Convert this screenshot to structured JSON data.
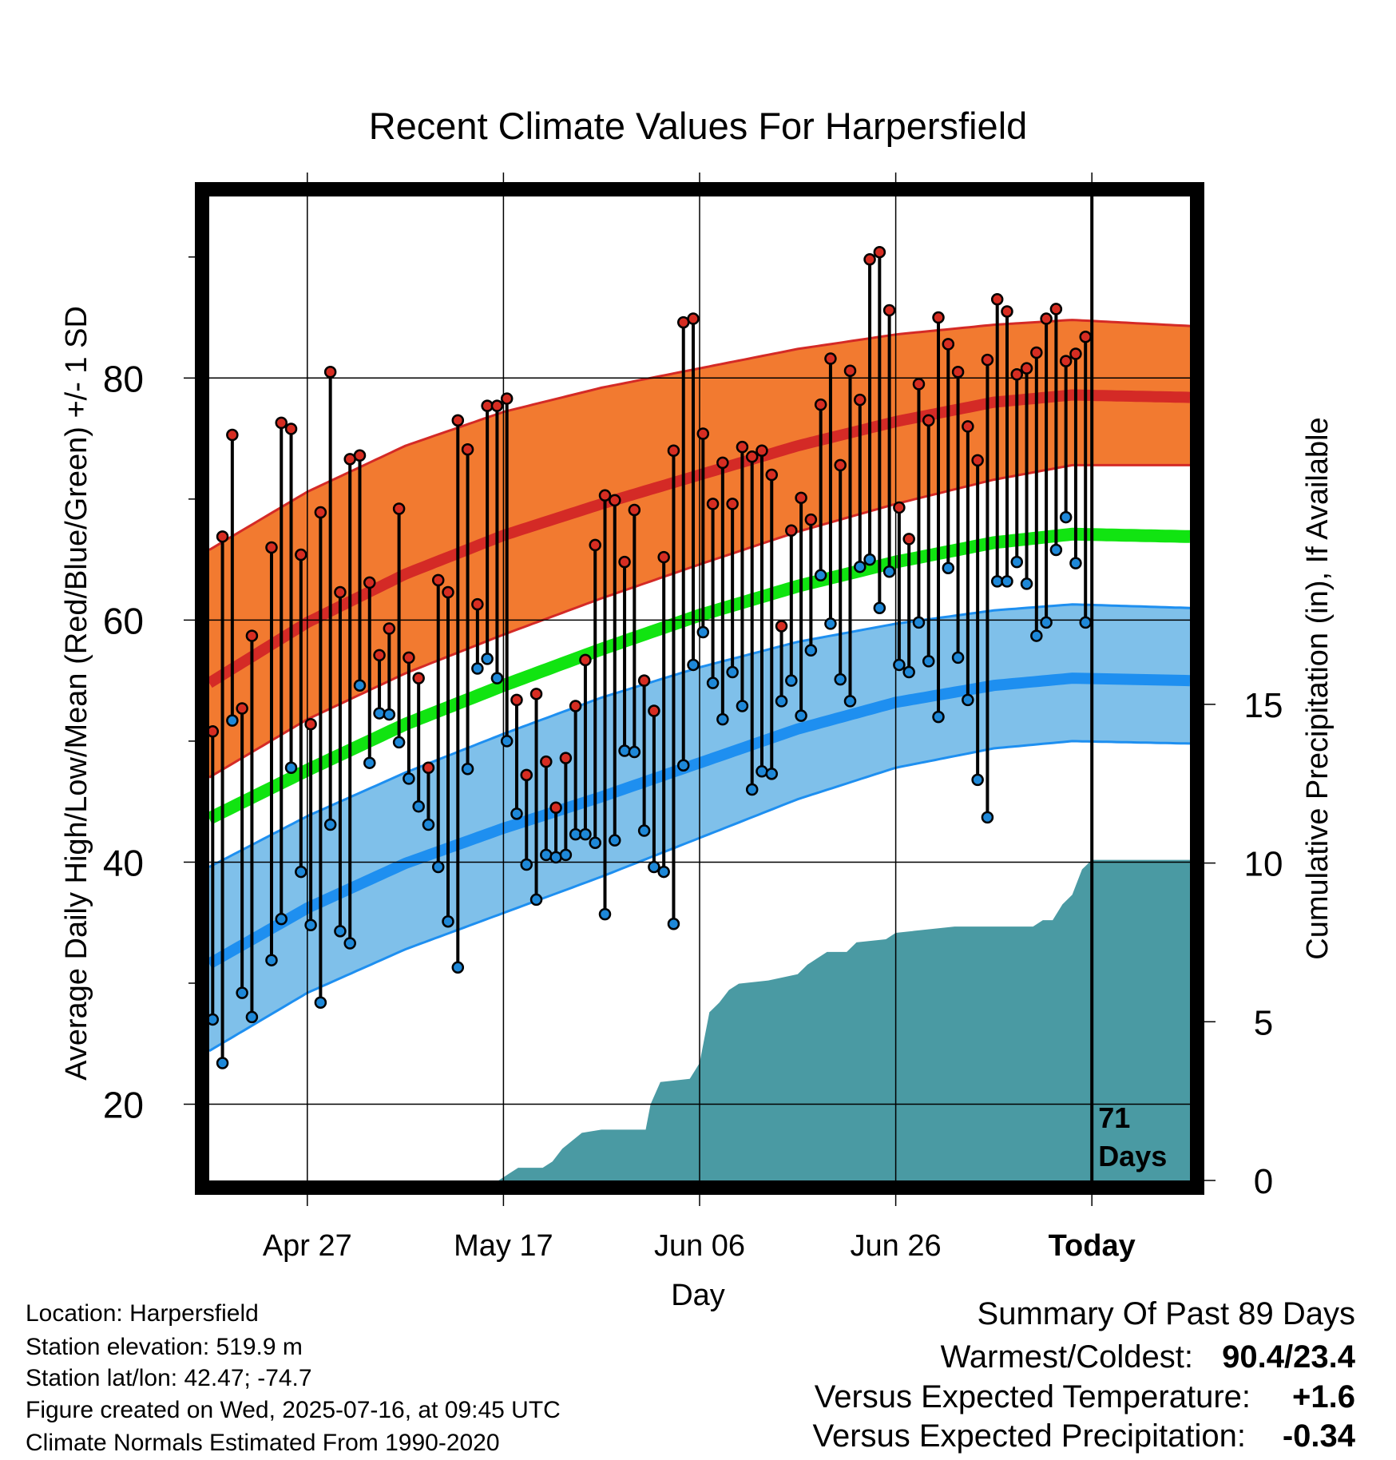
{
  "chart_data": {
    "type": "line",
    "title": "Recent Climate Values For Harpersfield",
    "xlabel": "Day",
    "ylabel": "Average Daily High/Low/Mean (Red/Blue/Green) +/- 1 SD",
    "y2label": "Cumulative Precipitation (in), If Available",
    "x_tick_labels": [
      "Apr 27",
      "May 17",
      "Jun 06",
      "Jun 26",
      "Today"
    ],
    "x_tick_day_index": [
      10,
      30,
      50,
      70,
      90
    ],
    "xlim_day_index": [
      0,
      100
    ],
    "ylim": [
      13.7,
      95
    ],
    "y_ticks": [
      20,
      40,
      60,
      80
    ],
    "y_minor_ticks": [
      30,
      50,
      70,
      90
    ],
    "y2lim": [
      0,
      31
    ],
    "y2_ticks": [
      0,
      5,
      10,
      15
    ],
    "today_label": "71\nDays",
    "grid": true,
    "colors": {
      "high_band": "#f27a30",
      "high_line": "#d42a26",
      "low_band": "#7fc0ea",
      "low_line": "#1e8ff0",
      "mean_line": "#11e411",
      "precip": "#4a9aa3",
      "high_point": "#d62d22",
      "low_point": "#1e88d8"
    },
    "normals": {
      "high_mean": [
        [
          0,
          54.8
        ],
        [
          10,
          59.8
        ],
        [
          20,
          63.8
        ],
        [
          30,
          67.0
        ],
        [
          40,
          69.6
        ],
        [
          50,
          72.0
        ],
        [
          60,
          74.4
        ],
        [
          70,
          76.4
        ],
        [
          80,
          78.0
        ],
        [
          88,
          78.6
        ],
        [
          100,
          78.4
        ]
      ],
      "high_upper": [
        [
          0,
          65.8
        ],
        [
          10,
          70.6
        ],
        [
          20,
          74.4
        ],
        [
          30,
          77.2
        ],
        [
          40,
          79.2
        ],
        [
          50,
          80.8
        ],
        [
          60,
          82.4
        ],
        [
          70,
          83.6
        ],
        [
          80,
          84.4
        ],
        [
          88,
          84.8
        ],
        [
          100,
          84.3
        ]
      ],
      "high_lower": [
        [
          0,
          47.0
        ],
        [
          10,
          51.8
        ],
        [
          20,
          55.6
        ],
        [
          30,
          58.8
        ],
        [
          40,
          61.8
        ],
        [
          50,
          64.6
        ],
        [
          60,
          67.3
        ],
        [
          70,
          69.6
        ],
        [
          80,
          71.6
        ],
        [
          88,
          72.8
        ],
        [
          100,
          72.8
        ]
      ],
      "mean": [
        [
          0,
          43.6
        ],
        [
          10,
          47.6
        ],
        [
          20,
          51.4
        ],
        [
          30,
          54.6
        ],
        [
          40,
          57.6
        ],
        [
          50,
          60.4
        ],
        [
          60,
          62.8
        ],
        [
          70,
          64.8
        ],
        [
          80,
          66.4
        ],
        [
          88,
          67.1
        ],
        [
          100,
          66.9
        ]
      ],
      "low_upper": [
        [
          0,
          39.6
        ],
        [
          10,
          43.8
        ],
        [
          20,
          47.4
        ],
        [
          30,
          50.6
        ],
        [
          40,
          53.6
        ],
        [
          50,
          56.1
        ],
        [
          60,
          58.2
        ],
        [
          70,
          59.7
        ],
        [
          80,
          60.8
        ],
        [
          88,
          61.3
        ],
        [
          100,
          61.0
        ]
      ],
      "low_mean": [
        [
          0,
          31.6
        ],
        [
          10,
          36.2
        ],
        [
          20,
          39.9
        ],
        [
          30,
          42.8
        ],
        [
          40,
          45.4
        ],
        [
          50,
          48.2
        ],
        [
          60,
          51.0
        ],
        [
          70,
          53.2
        ],
        [
          80,
          54.6
        ],
        [
          88,
          55.2
        ],
        [
          100,
          55.0
        ]
      ],
      "low_lower": [
        [
          0,
          24.4
        ],
        [
          10,
          29.2
        ],
        [
          20,
          32.8
        ],
        [
          30,
          35.8
        ],
        [
          40,
          38.8
        ],
        [
          50,
          42.0
        ],
        [
          60,
          45.2
        ],
        [
          70,
          47.8
        ],
        [
          80,
          49.4
        ],
        [
          88,
          50.0
        ],
        [
          100,
          49.8
        ]
      ]
    },
    "daily": [
      {
        "d": 0,
        "high": 50.8,
        "low": 27.0
      },
      {
        "d": 1,
        "high": 66.9,
        "low": 23.4
      },
      {
        "d": 2,
        "high": 75.3,
        "low": 51.7
      },
      {
        "d": 3,
        "high": 52.7,
        "low": 29.2
      },
      {
        "d": 4,
        "high": 58.7,
        "low": 27.2
      },
      {
        "d": 6,
        "high": 66.0,
        "low": 31.9
      },
      {
        "d": 7,
        "high": 76.3,
        "low": 35.3
      },
      {
        "d": 8,
        "high": 75.8,
        "low": 47.8
      },
      {
        "d": 9,
        "high": 65.4,
        "low": 39.2
      },
      {
        "d": 10,
        "high": 51.4,
        "low": 34.8
      },
      {
        "d": 11,
        "high": 68.9,
        "low": 28.4
      },
      {
        "d": 12,
        "high": 80.5,
        "low": 43.1
      },
      {
        "d": 13,
        "high": 62.3,
        "low": 34.3
      },
      {
        "d": 14,
        "high": 73.3,
        "low": 33.3
      },
      {
        "d": 15,
        "high": 73.6,
        "low": 54.6
      },
      {
        "d": 16,
        "high": 63.1,
        "low": 48.2
      },
      {
        "d": 17,
        "high": 57.1,
        "low": 52.3
      },
      {
        "d": 18,
        "high": 59.3,
        "low": 52.2
      },
      {
        "d": 19,
        "high": 69.2,
        "low": 49.9
      },
      {
        "d": 20,
        "high": 56.9,
        "low": 46.9
      },
      {
        "d": 21,
        "high": 55.2,
        "low": 44.6
      },
      {
        "d": 22,
        "high": 47.8,
        "low": 43.1
      },
      {
        "d": 23,
        "high": 63.3,
        "low": 39.6
      },
      {
        "d": 24,
        "high": 62.3,
        "low": 35.1
      },
      {
        "d": 25,
        "high": 76.5,
        "low": 31.3
      },
      {
        "d": 26,
        "high": 74.1,
        "low": 47.7
      },
      {
        "d": 27,
        "high": 61.3,
        "low": 56.0
      },
      {
        "d": 28,
        "high": 77.7,
        "low": 56.8
      },
      {
        "d": 29,
        "high": 77.7,
        "low": 55.2
      },
      {
        "d": 30,
        "high": 78.3,
        "low": 50.0
      },
      {
        "d": 31,
        "high": 53.4,
        "low": 44.0
      },
      {
        "d": 32,
        "high": 47.2,
        "low": 39.8
      },
      {
        "d": 33,
        "high": 53.9,
        "low": 36.9
      },
      {
        "d": 34,
        "high": 48.3,
        "low": 40.6
      },
      {
        "d": 35,
        "high": 44.5,
        "low": 40.4
      },
      {
        "d": 36,
        "high": 48.6,
        "low": 40.6
      },
      {
        "d": 37,
        "high": 52.9,
        "low": 42.3
      },
      {
        "d": 38,
        "high": 56.7,
        "low": 42.3
      },
      {
        "d": 39,
        "high": 66.2,
        "low": 41.6
      },
      {
        "d": 40,
        "high": 70.3,
        "low": 35.7
      },
      {
        "d": 41,
        "high": 69.9,
        "low": 41.8
      },
      {
        "d": 42,
        "high": 64.8,
        "low": 49.2
      },
      {
        "d": 43,
        "high": 69.1,
        "low": 49.1
      },
      {
        "d": 44,
        "high": 55.0,
        "low": 42.6
      },
      {
        "d": 45,
        "high": 52.5,
        "low": 39.6
      },
      {
        "d": 46,
        "high": 65.2,
        "low": 39.2
      },
      {
        "d": 47,
        "high": 74.0,
        "low": 34.9
      },
      {
        "d": 48,
        "high": 84.6,
        "low": 48.0
      },
      {
        "d": 49,
        "high": 84.9,
        "low": 56.3
      },
      {
        "d": 50,
        "high": 75.4,
        "low": 59.0
      },
      {
        "d": 51,
        "high": 69.6,
        "low": 54.8
      },
      {
        "d": 52,
        "high": 73.0,
        "low": 51.8
      },
      {
        "d": 53,
        "high": 69.6,
        "low": 55.7
      },
      {
        "d": 54,
        "high": 74.3,
        "low": 52.9
      },
      {
        "d": 55,
        "high": 73.5,
        "low": 46.0
      },
      {
        "d": 56,
        "high": 74.0,
        "low": 47.5
      },
      {
        "d": 57,
        "high": 72.0,
        "low": 47.3
      },
      {
        "d": 58,
        "high": 59.5,
        "low": 53.3
      },
      {
        "d": 59,
        "high": 67.4,
        "low": 55.0
      },
      {
        "d": 60,
        "high": 70.1,
        "low": 52.1
      },
      {
        "d": 61,
        "high": 68.3,
        "low": 57.5
      },
      {
        "d": 62,
        "high": 77.8,
        "low": 63.7
      },
      {
        "d": 63,
        "high": 81.6,
        "low": 59.7
      },
      {
        "d": 64,
        "high": 72.8,
        "low": 55.1
      },
      {
        "d": 65,
        "high": 80.6,
        "low": 53.3
      },
      {
        "d": 66,
        "high": 78.2,
        "low": 64.4
      },
      {
        "d": 67,
        "high": 89.8,
        "low": 65.0
      },
      {
        "d": 68,
        "high": 90.4,
        "low": 61.0
      },
      {
        "d": 69,
        "high": 85.6,
        "low": 64.0
      },
      {
        "d": 70,
        "high": 69.3,
        "low": 56.3
      },
      {
        "d": 71,
        "high": 66.7,
        "low": 55.7
      },
      {
        "d": 72,
        "high": 79.5,
        "low": 59.8
      },
      {
        "d": 73,
        "high": 76.5,
        "low": 56.6
      },
      {
        "d": 74,
        "high": 85.0,
        "low": 52.0
      },
      {
        "d": 75,
        "high": 82.8,
        "low": 64.3
      },
      {
        "d": 76,
        "high": 80.5,
        "low": 56.9
      },
      {
        "d": 77,
        "high": 76.0,
        "low": 53.4
      },
      {
        "d": 78,
        "high": 73.2,
        "low": 46.8
      },
      {
        "d": 79,
        "high": 81.5,
        "low": 43.7
      },
      {
        "d": 80,
        "high": 86.5,
        "low": 63.2
      },
      {
        "d": 81,
        "high": 85.5,
        "low": 63.2
      },
      {
        "d": 82,
        "high": 80.3,
        "low": 64.8
      },
      {
        "d": 83,
        "high": 80.8,
        "low": 63.0
      },
      {
        "d": 84,
        "high": 82.1,
        "low": 58.7
      },
      {
        "d": 85,
        "high": 84.9,
        "low": 59.8
      },
      {
        "d": 86,
        "high": 85.7,
        "low": 65.8
      },
      {
        "d": 87,
        "high": 81.4,
        "low": 68.5
      },
      {
        "d": 88,
        "high": 82.0,
        "low": 64.7
      },
      {
        "d": 89,
        "high": 83.4,
        "low": 59.8
      }
    ],
    "cumulative_precip": [
      [
        0,
        0
      ],
      [
        29.5,
        0
      ],
      [
        31.5,
        0.4
      ],
      [
        34,
        0.4
      ],
      [
        35,
        0.6
      ],
      [
        36,
        1.0
      ],
      [
        38,
        1.5
      ],
      [
        40,
        1.6
      ],
      [
        44.5,
        1.6
      ],
      [
        45,
        2.4
      ],
      [
        46,
        3.1
      ],
      [
        49,
        3.2
      ],
      [
        50,
        3.7
      ],
      [
        51,
        5.3
      ],
      [
        52,
        5.6
      ],
      [
        53,
        6.0
      ],
      [
        54,
        6.2
      ],
      [
        57,
        6.3
      ],
      [
        60,
        6.5
      ],
      [
        61,
        6.8
      ],
      [
        62,
        7.0
      ],
      [
        63,
        7.2
      ],
      [
        65,
        7.2
      ],
      [
        66,
        7.5
      ],
      [
        69,
        7.6
      ],
      [
        70,
        7.8
      ],
      [
        73,
        7.9
      ],
      [
        76,
        8.0
      ],
      [
        84,
        8.0
      ],
      [
        85,
        8.2
      ],
      [
        86,
        8.2
      ],
      [
        87,
        8.7
      ],
      [
        88,
        9.0
      ],
      [
        89,
        9.8
      ],
      [
        90,
        10.1
      ],
      [
        100,
        10.1
      ]
    ]
  },
  "info": {
    "location": "Location: Harpersfield",
    "elevation": "Station elevation: 519.9 m",
    "latlon": "Station lat/lon: 42.47; -74.7",
    "created": "Figure created on Wed, 2025-07-16, at 09:45 UTC",
    "normals": "Climate Normals Estimated From 1990-2020"
  },
  "summary": {
    "title": "Summary Of Past 89 Days",
    "warmest_label": "Warmest/Coldest:",
    "warmest_value": "90.4/23.4",
    "temp_label": "Versus Expected Temperature:",
    "temp_value": "+1.6",
    "precip_label": "Versus Expected Precipitation:",
    "precip_value": "-0.34",
    "temp_color": "#d42a26",
    "precip_color": "#a0522d"
  }
}
